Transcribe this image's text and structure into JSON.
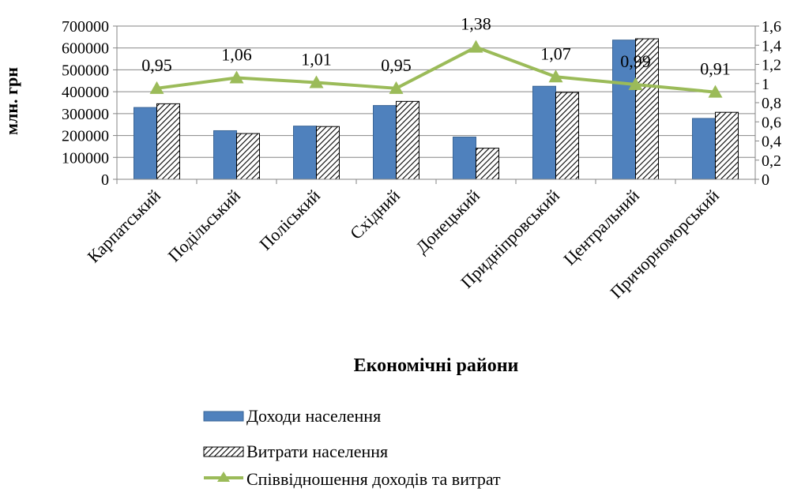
{
  "chart_data": {
    "type": "bar",
    "categories": [
      "Карпатський",
      "Подільський",
      "Поліський",
      "Східний",
      "Донецький",
      "Придніпровський",
      "Центральний",
      "Причорноморський"
    ],
    "series": [
      {
        "name": "Доходи населення",
        "type": "bar",
        "axis": "left",
        "color": "#4f81bd",
        "values": [
          328000,
          222000,
          243000,
          337000,
          193000,
          425000,
          636000,
          278000
        ]
      },
      {
        "name": "Витрати населення",
        "type": "bar",
        "axis": "left",
        "pattern": "diagonal-hatch",
        "values": [
          345000,
          209000,
          241000,
          356000,
          142000,
          397000,
          642000,
          306000
        ]
      },
      {
        "name": "Співвідношення доходів та витрат",
        "type": "line",
        "axis": "right",
        "color": "#9bbb59",
        "marker": "triangle",
        "values": [
          0.95,
          1.06,
          1.01,
          0.95,
          1.38,
          1.07,
          0.99,
          0.91
        ]
      }
    ],
    "data_labels": [
      "0,95",
      "1,06",
      "1,01",
      "0,95",
      "1,38",
      "1,07",
      "0,99",
      "0,91"
    ],
    "title": "",
    "xlabel": "Економічні райони",
    "ylabel": "млн. грн",
    "ylim": [
      0,
      700000
    ],
    "y2lim": [
      0,
      1.6
    ],
    "yticks": [
      "0",
      "100000",
      "200000",
      "300000",
      "400000",
      "500000",
      "600000",
      "700000"
    ],
    "y2ticks": [
      "0",
      "0,2",
      "0,4",
      "0,6",
      "0,8",
      "1",
      "1,2",
      "1,4",
      "1,6"
    ],
    "grid": true,
    "legend": "bottom"
  }
}
